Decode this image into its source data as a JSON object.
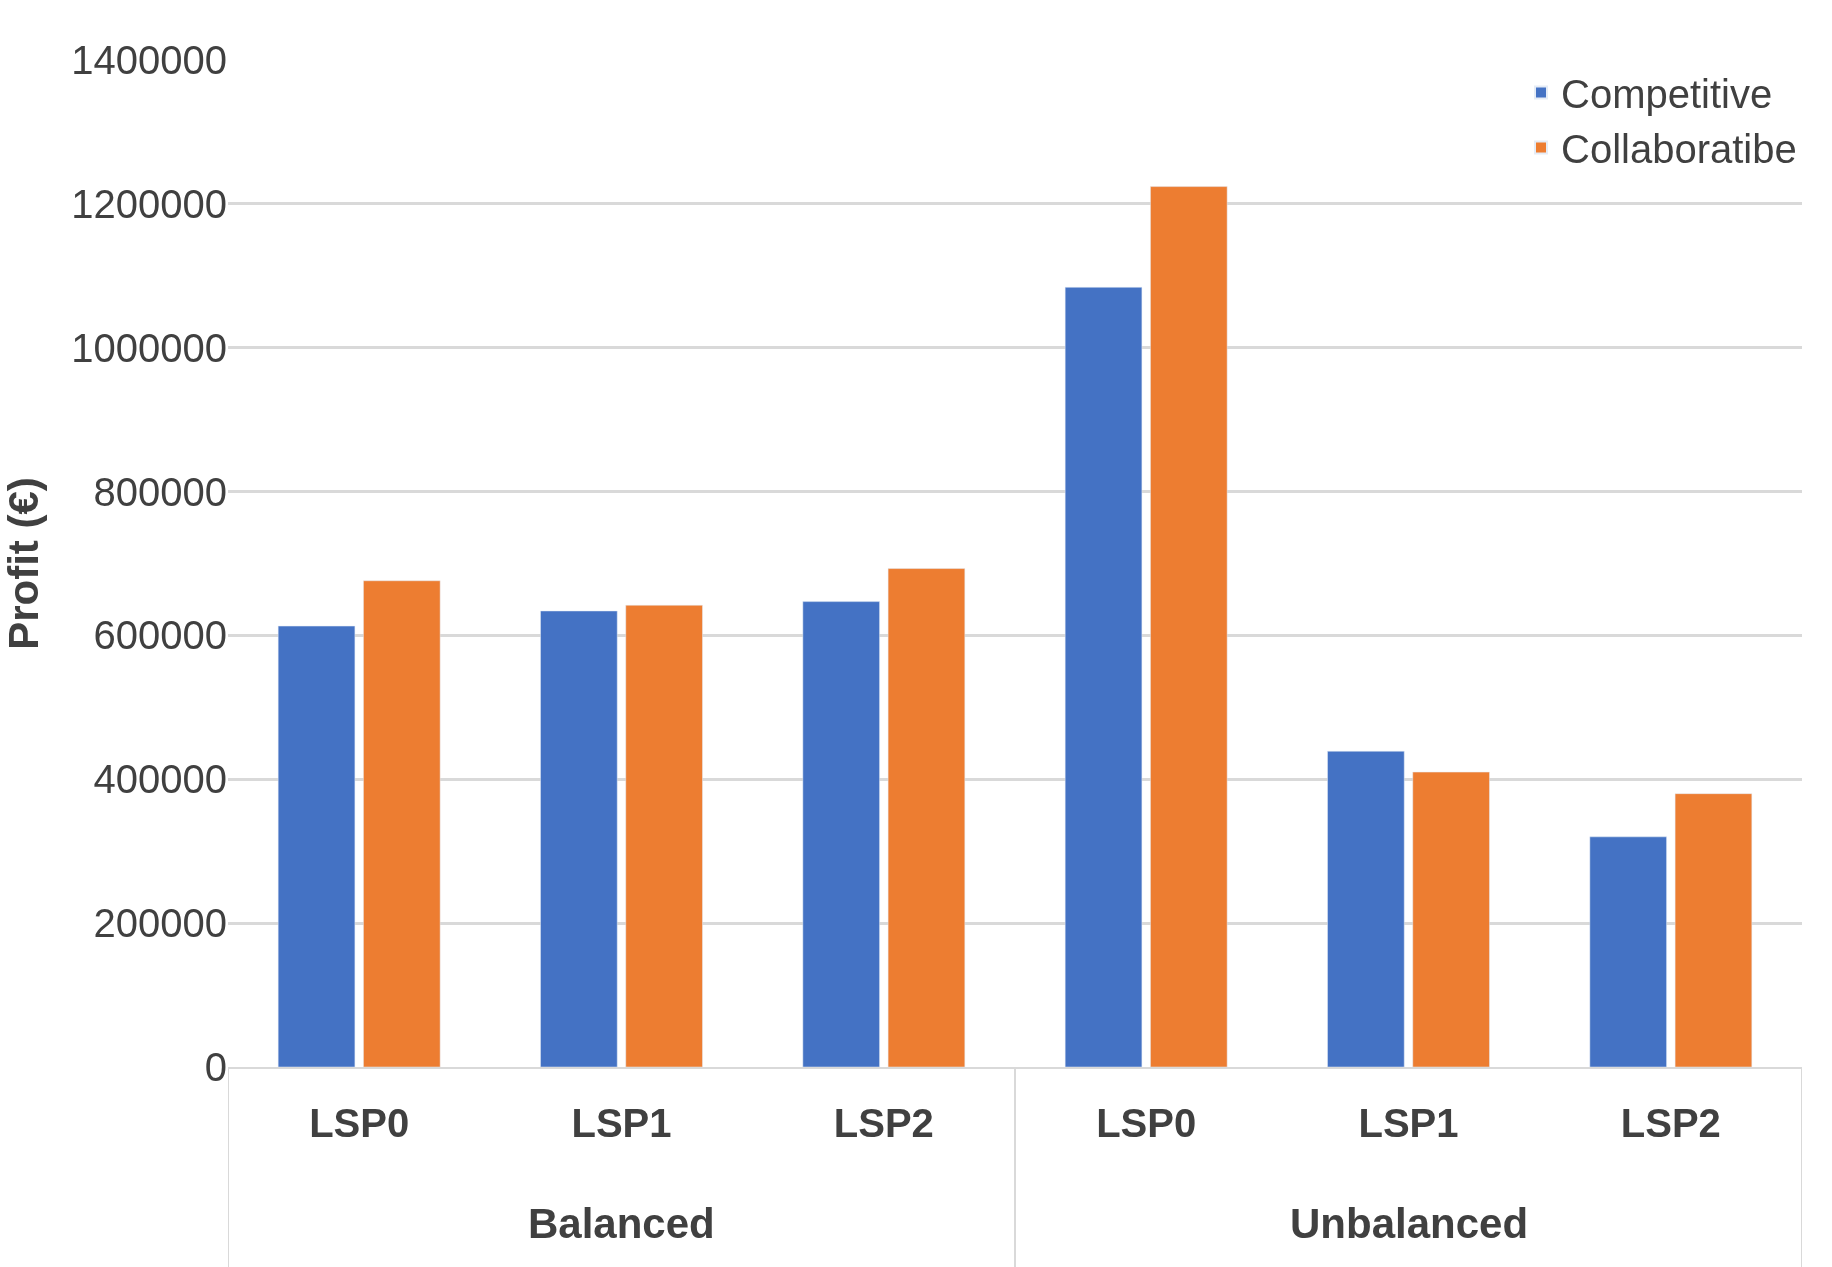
{
  "chart_data": {
    "type": "bar",
    "ylabel": "Profit (€)",
    "categories": [
      "LSP0",
      "LSP1",
      "LSP2",
      "LSP0",
      "LSP1",
      "LSP2"
    ],
    "series": [
      {
        "name": "Competitive",
        "color": "#4472c4",
        "values": [
          613000,
          634000,
          647000,
          1084000,
          439000,
          320000
        ]
      },
      {
        "name": "Collaboratibe",
        "color": "#ed7d31",
        "values": [
          676000,
          642000,
          693000,
          1224000,
          410000,
          380000
        ]
      }
    ],
    "annotations": [
      "Balanced",
      "Unbalanced"
    ],
    "ylim": [
      0,
      1400000
    ],
    "yticks": [
      0,
      200000,
      400000,
      600000,
      800000,
      1000000,
      1200000,
      1400000
    ],
    "grid": "y",
    "legend": "top right"
  }
}
